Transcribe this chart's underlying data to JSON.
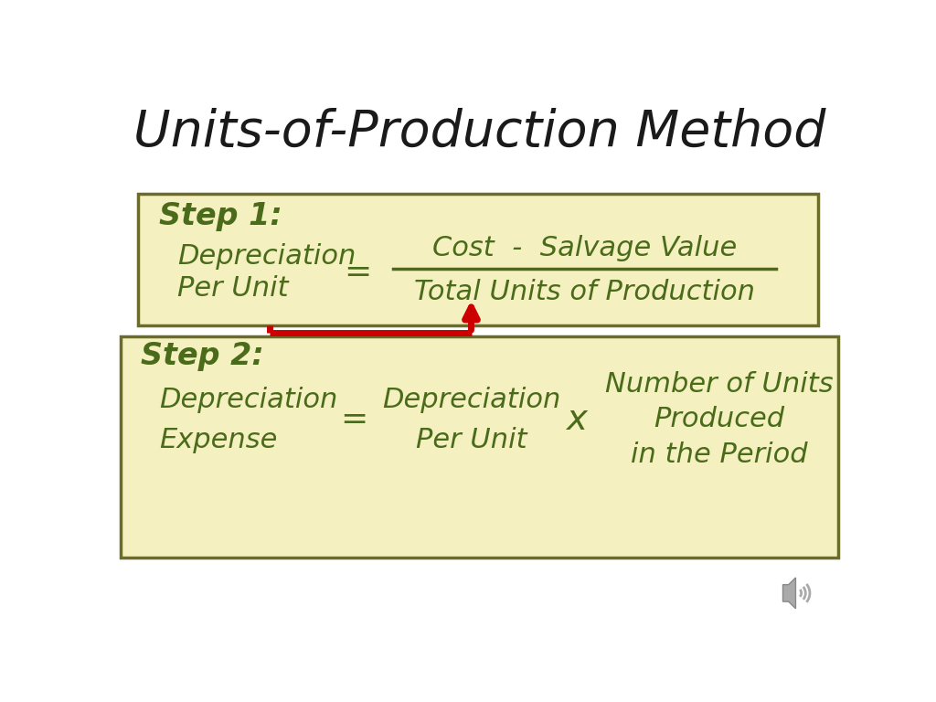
{
  "title": "Units-of-Production Method",
  "title_color": "#1a1a1a",
  "title_fontsize": 40,
  "bg_color": "#ffffff",
  "box_fill": "#f5f0c0",
  "box_edge": "#6b6b2a",
  "text_color": "#4a6b1a",
  "arrow_color": "#cc0000",
  "step1_label": "Step 1:",
  "step1_left_line1": "Depreciation",
  "step1_left_line2": "Per Unit",
  "step1_equals": "=",
  "step1_numerator": "Cost  -  Salvage Value",
  "step1_denominator": "Total Units of Production",
  "step2_label": "Step 2:",
  "step2_left_line1": "Depreciation",
  "step2_left_line2": "Expense",
  "step2_equals": "=",
  "step2_mid_line1": "Depreciation",
  "step2_mid_line2": "Per Unit",
  "step2_times": "x",
  "step2_right_line1": "Number of Units",
  "step2_right_line2": "Produced",
  "step2_right_line3": "in the Period",
  "step_label_fontsize": 24,
  "body_fontsize": 22
}
